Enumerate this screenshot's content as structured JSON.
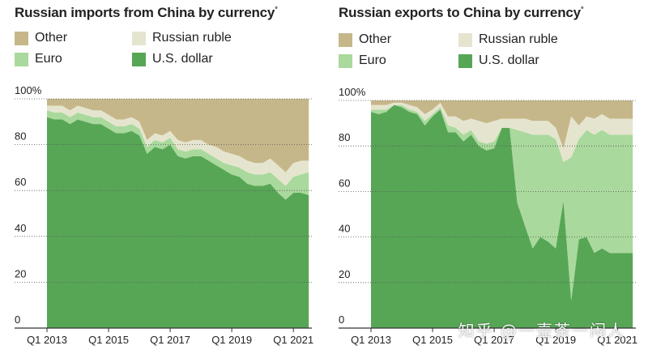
{
  "colors": {
    "other": "#c6b78a",
    "russian_ruble": "#e5e5cf",
    "euro": "#a9d99c",
    "us_dollar": "#57a656"
  },
  "watermark": "知乎 @一壶茶一闲人",
  "chart_data": [
    {
      "type": "area",
      "stacked": true,
      "title": "Russian imports from China by currency",
      "title_marker": "*",
      "ylim": [
        0,
        100
      ],
      "xlim": [
        2013,
        2021.6
      ],
      "y_ticks": [
        0,
        20,
        40,
        60,
        80,
        100
      ],
      "y_tick_labels": [
        "0",
        "20",
        "40",
        "60",
        "80",
        "100%"
      ],
      "x_ticks": [
        2013,
        2015,
        2017,
        2019,
        2021
      ],
      "x_tick_labels": [
        "Q1 2013",
        "Q1 2015",
        "Q1 2017",
        "Q1 2019",
        "Q1 2021"
      ],
      "grid": true,
      "legend": [
        {
          "key": "other",
          "label": "Other"
        },
        {
          "key": "russian_ruble",
          "label": "Russian ruble"
        },
        {
          "key": "euro",
          "label": "Euro"
        },
        {
          "key": "us_dollar",
          "label": "U.S. dollar"
        }
      ],
      "x": [
        2013,
        2013.25,
        2013.5,
        2013.75,
        2014,
        2014.25,
        2014.5,
        2014.75,
        2015,
        2015.25,
        2015.5,
        2015.75,
        2016,
        2016.25,
        2016.5,
        2016.75,
        2017,
        2017.25,
        2017.5,
        2017.75,
        2018,
        2018.25,
        2018.5,
        2018.75,
        2019,
        2019.25,
        2019.5,
        2019.75,
        2020,
        2020.25,
        2020.5,
        2020.75,
        2021,
        2021.25,
        2021.5
      ],
      "series": [
        {
          "key": "us_dollar",
          "values": [
            92,
            91,
            91,
            89,
            91,
            90,
            89,
            89,
            87,
            85,
            85,
            86,
            84,
            76,
            79,
            78,
            80,
            75,
            74,
            75,
            75,
            73,
            71,
            69,
            67,
            66,
            63,
            62,
            62,
            63,
            59,
            56,
            59,
            59,
            58
          ]
        },
        {
          "key": "euro",
          "values": [
            3,
            3,
            3,
            3,
            3,
            3,
            3,
            3,
            3,
            3,
            3,
            3,
            3,
            3,
            3,
            3,
            3,
            3,
            3,
            3,
            3,
            3,
            3,
            3,
            4,
            4,
            5,
            5,
            5,
            5,
            6,
            6,
            7,
            8,
            10
          ]
        },
        {
          "key": "russian_ruble",
          "values": [
            2,
            3,
            3,
            3,
            3,
            3,
            3,
            3,
            3,
            3,
            3,
            3,
            3,
            3,
            3,
            3,
            3,
            4,
            4,
            4,
            4,
            4,
            5,
            5,
            5,
            5,
            5,
            5,
            5,
            6,
            6,
            6,
            6,
            6,
            5
          ]
        },
        {
          "key": "other",
          "values": [
            3,
            3,
            3,
            5,
            3,
            4,
            5,
            5,
            7,
            9,
            9,
            8,
            10,
            18,
            15,
            16,
            14,
            18,
            19,
            18,
            18,
            20,
            21,
            23,
            24,
            25,
            27,
            28,
            28,
            26,
            29,
            32,
            28,
            27,
            27
          ]
        }
      ]
    },
    {
      "type": "area",
      "stacked": true,
      "title": "Russian exports to China by currency",
      "title_marker": "*",
      "ylim": [
        0,
        100
      ],
      "xlim": [
        2013,
        2021.6
      ],
      "y_ticks": [
        0,
        20,
        40,
        60,
        80,
        100
      ],
      "y_tick_labels": [
        "0",
        "20",
        "40",
        "60",
        "80",
        "100%"
      ],
      "x_ticks": [
        2013,
        2015,
        2017,
        2019,
        2021
      ],
      "x_tick_labels": [
        "Q1 2013",
        "Q1 2015",
        "Q1 2017",
        "Q1 2019",
        "Q1 2021"
      ],
      "grid": true,
      "legend": [
        {
          "key": "other",
          "label": "Other"
        },
        {
          "key": "russian_ruble",
          "label": "Russian ruble"
        },
        {
          "key": "euro",
          "label": "Euro"
        },
        {
          "key": "us_dollar",
          "label": "U.S. dollar"
        }
      ],
      "x": [
        2013,
        2013.25,
        2013.5,
        2013.75,
        2014,
        2014.25,
        2014.5,
        2014.75,
        2015,
        2015.25,
        2015.5,
        2015.75,
        2016,
        2016.25,
        2016.5,
        2016.75,
        2017,
        2017.25,
        2017.5,
        2017.75,
        2018,
        2018.25,
        2018.5,
        2018.75,
        2019,
        2019.25,
        2019.5,
        2019.75,
        2020,
        2020.25,
        2020.5,
        2020.75,
        2021,
        2021.25,
        2021.5
      ],
      "series": [
        {
          "key": "us_dollar",
          "values": [
            95,
            94,
            95,
            98,
            97,
            95,
            94,
            89,
            93,
            96,
            86,
            86,
            82,
            85,
            80,
            78,
            79,
            88,
            88,
            55,
            45,
            35,
            40,
            38,
            35,
            56,
            12,
            39,
            40,
            33,
            35,
            33,
            33,
            33,
            33
          ]
        },
        {
          "key": "euro",
          "values": [
            1,
            2,
            1,
            0,
            1,
            1,
            1,
            2,
            1,
            1,
            3,
            2,
            3,
            2,
            2,
            3,
            3,
            0,
            0,
            32,
            41,
            50,
            45,
            47,
            48,
            17,
            63,
            44,
            47,
            52,
            52,
            52,
            52,
            52,
            52
          ]
        },
        {
          "key": "russian_ruble",
          "values": [
            2,
            2,
            2,
            1,
            1,
            2,
            2,
            3,
            2,
            2,
            4,
            5,
            6,
            5,
            9,
            9,
            9,
            4,
            4,
            5,
            6,
            6,
            6,
            6,
            5,
            6,
            18,
            6,
            6,
            7,
            7,
            7,
            7,
            7,
            7
          ]
        },
        {
          "key": "other",
          "values": [
            2,
            2,
            2,
            1,
            1,
            2,
            3,
            6,
            4,
            1,
            7,
            7,
            9,
            8,
            9,
            10,
            9,
            8,
            8,
            8,
            8,
            9,
            9,
            9,
            12,
            21,
            7,
            11,
            7,
            8,
            6,
            8,
            8,
            8,
            8
          ]
        }
      ]
    }
  ]
}
